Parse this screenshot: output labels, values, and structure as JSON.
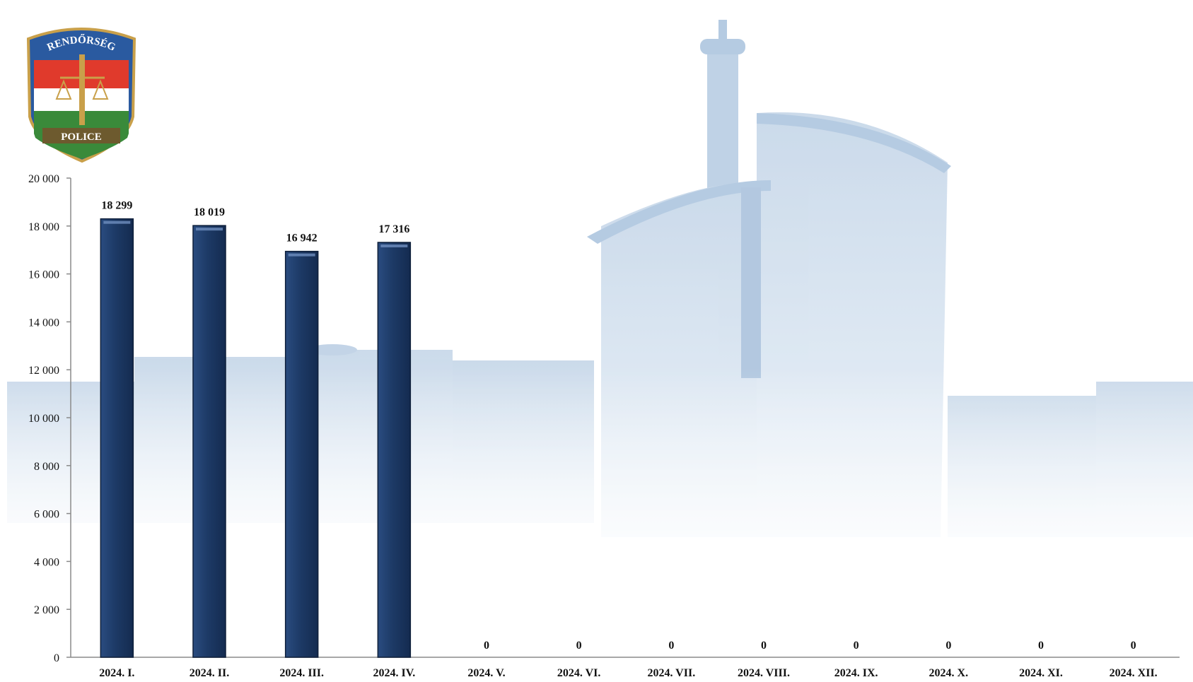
{
  "badge": {
    "top_text": "RENDŐRSÉG",
    "bottom_text": "POLICE"
  },
  "colors": {
    "bar": "#1d3a66",
    "bar_edge": "#0e1f3a",
    "axis": "#8a8a8a",
    "background_building": "#c9d9ea"
  },
  "chart_data": {
    "type": "bar",
    "title": "",
    "xlabel": "",
    "ylabel": "",
    "ylim": [
      0,
      20000
    ],
    "yticks": [
      0,
      2000,
      4000,
      6000,
      8000,
      10000,
      12000,
      14000,
      16000,
      18000,
      20000
    ],
    "ytick_labels": [
      "0",
      "2 000",
      "4 000",
      "6 000",
      "8 000",
      "10 000",
      "12 000",
      "14 000",
      "16 000",
      "18 000",
      "20 000"
    ],
    "categories": [
      "2024. I.",
      "2024. II.",
      "2024. III.",
      "2024. IV.",
      "2024. V.",
      "2024. VI.",
      "2024. VII.",
      "2024. VIII.",
      "2024. IX.",
      "2024. X.",
      "2024. XI.",
      "2024. XII."
    ],
    "values": [
      18299,
      18019,
      16942,
      17316,
      0,
      0,
      0,
      0,
      0,
      0,
      0,
      0
    ],
    "data_labels": [
      "18 299",
      "18 019",
      "16 942",
      "17 316",
      "0",
      "0",
      "0",
      "0",
      "0",
      "0",
      "0",
      "0"
    ],
    "grid": false,
    "legend": "none"
  }
}
